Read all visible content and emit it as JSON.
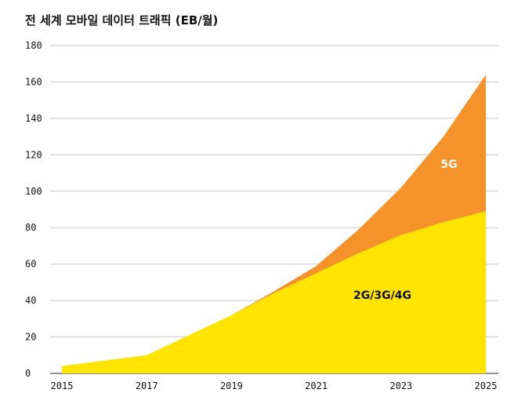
{
  "chart_data": {
    "type": "area",
    "stacked": true,
    "title": "전 세계 모바일 데이터 트래픽 (EB/월)",
    "xlabel": "",
    "ylabel": "",
    "x": [
      2015,
      2016,
      2017,
      2018,
      2019,
      2020,
      2021,
      2022,
      2023,
      2024,
      2025
    ],
    "xticks": [
      "2015",
      "2017",
      "2019",
      "2021",
      "2023",
      "2025"
    ],
    "yticks": [
      "0",
      "20",
      "40",
      "60",
      "80",
      "100",
      "120",
      "140",
      "160",
      "180"
    ],
    "xlim": [
      2015,
      2025
    ],
    "ylim": [
      0,
      180
    ],
    "grid": true,
    "series": [
      {
        "name": "2G/3G/4G",
        "color": "#FFE400",
        "values": [
          4,
          7,
          10,
          21,
          32,
          44,
          55,
          66,
          76,
          83,
          89
        ]
      },
      {
        "name": "5G",
        "color": "#F5922A",
        "values": [
          0,
          0,
          0,
          0,
          0,
          1,
          4,
          13,
          26,
          47,
          75
        ]
      }
    ],
    "annotations": [
      {
        "text": "5G",
        "color": "#ffffff"
      },
      {
        "text": "2G/3G/4G",
        "color": "#111111"
      }
    ]
  }
}
